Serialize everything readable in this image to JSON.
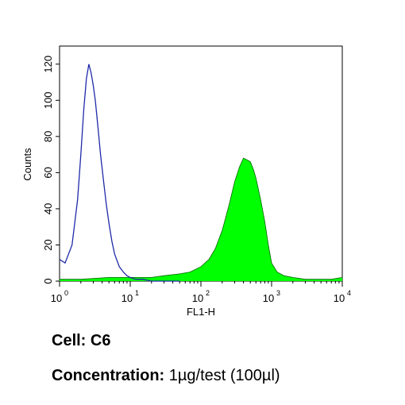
{
  "chart_data": {
    "type": "area",
    "title": "",
    "xlabel": "FL1-H",
    "ylabel": "Counts",
    "xscale": "log",
    "xlim": [
      1,
      10000
    ],
    "ylim": [
      0,
      130
    ],
    "grid": false,
    "legend": "none",
    "x_ticks": [
      {
        "value": 1,
        "base": "10",
        "exp": "0"
      },
      {
        "value": 10,
        "base": "10",
        "exp": "1"
      },
      {
        "value": 100,
        "base": "10",
        "exp": "2"
      },
      {
        "value": 1000,
        "base": "10",
        "exp": "3"
      },
      {
        "value": 10000,
        "base": "10",
        "exp": "4"
      }
    ],
    "y_ticks": [
      "0",
      "20",
      "40",
      "60",
      "80",
      "100",
      "120"
    ],
    "series": [
      {
        "style": "outline",
        "color": "#1f2aa8",
        "x": [
          1,
          1.2,
          1.5,
          1.8,
          2.0,
          2.2,
          2.4,
          2.6,
          2.8,
          3.0,
          3.2,
          3.5,
          3.8,
          4.2,
          4.6,
          5.0,
          5.5,
          6.0,
          7.0,
          8.0,
          9.0,
          10,
          12,
          15,
          20,
          30,
          50
        ],
        "y": [
          12,
          10,
          20,
          45,
          70,
          95,
          112,
          120,
          115,
          108,
          100,
          85,
          70,
          55,
          42,
          32,
          22,
          15,
          8,
          5,
          3,
          2,
          1,
          1,
          0,
          0,
          0
        ]
      },
      {
        "style": "filled",
        "color": "#00ff00",
        "x": [
          1,
          2,
          5,
          10,
          20,
          30,
          50,
          70,
          100,
          130,
          160,
          200,
          250,
          300,
          350,
          400,
          450,
          500,
          550,
          600,
          700,
          800,
          900,
          1000,
          1200,
          1500,
          2000,
          3000,
          5000,
          7000,
          10000
        ],
        "y": [
          1,
          1,
          2,
          2,
          2,
          3,
          4,
          5,
          8,
          12,
          18,
          28,
          42,
          55,
          63,
          68,
          67,
          66,
          62,
          57,
          45,
          33,
          20,
          10,
          5,
          3,
          2,
          1,
          1,
          1,
          2
        ]
      }
    ]
  },
  "caption": {
    "cell_label": "Cell:",
    "cell_value": "C6",
    "concentration_label": "Concentration:",
    "concentration_value": "1µg/test (100µl)"
  }
}
